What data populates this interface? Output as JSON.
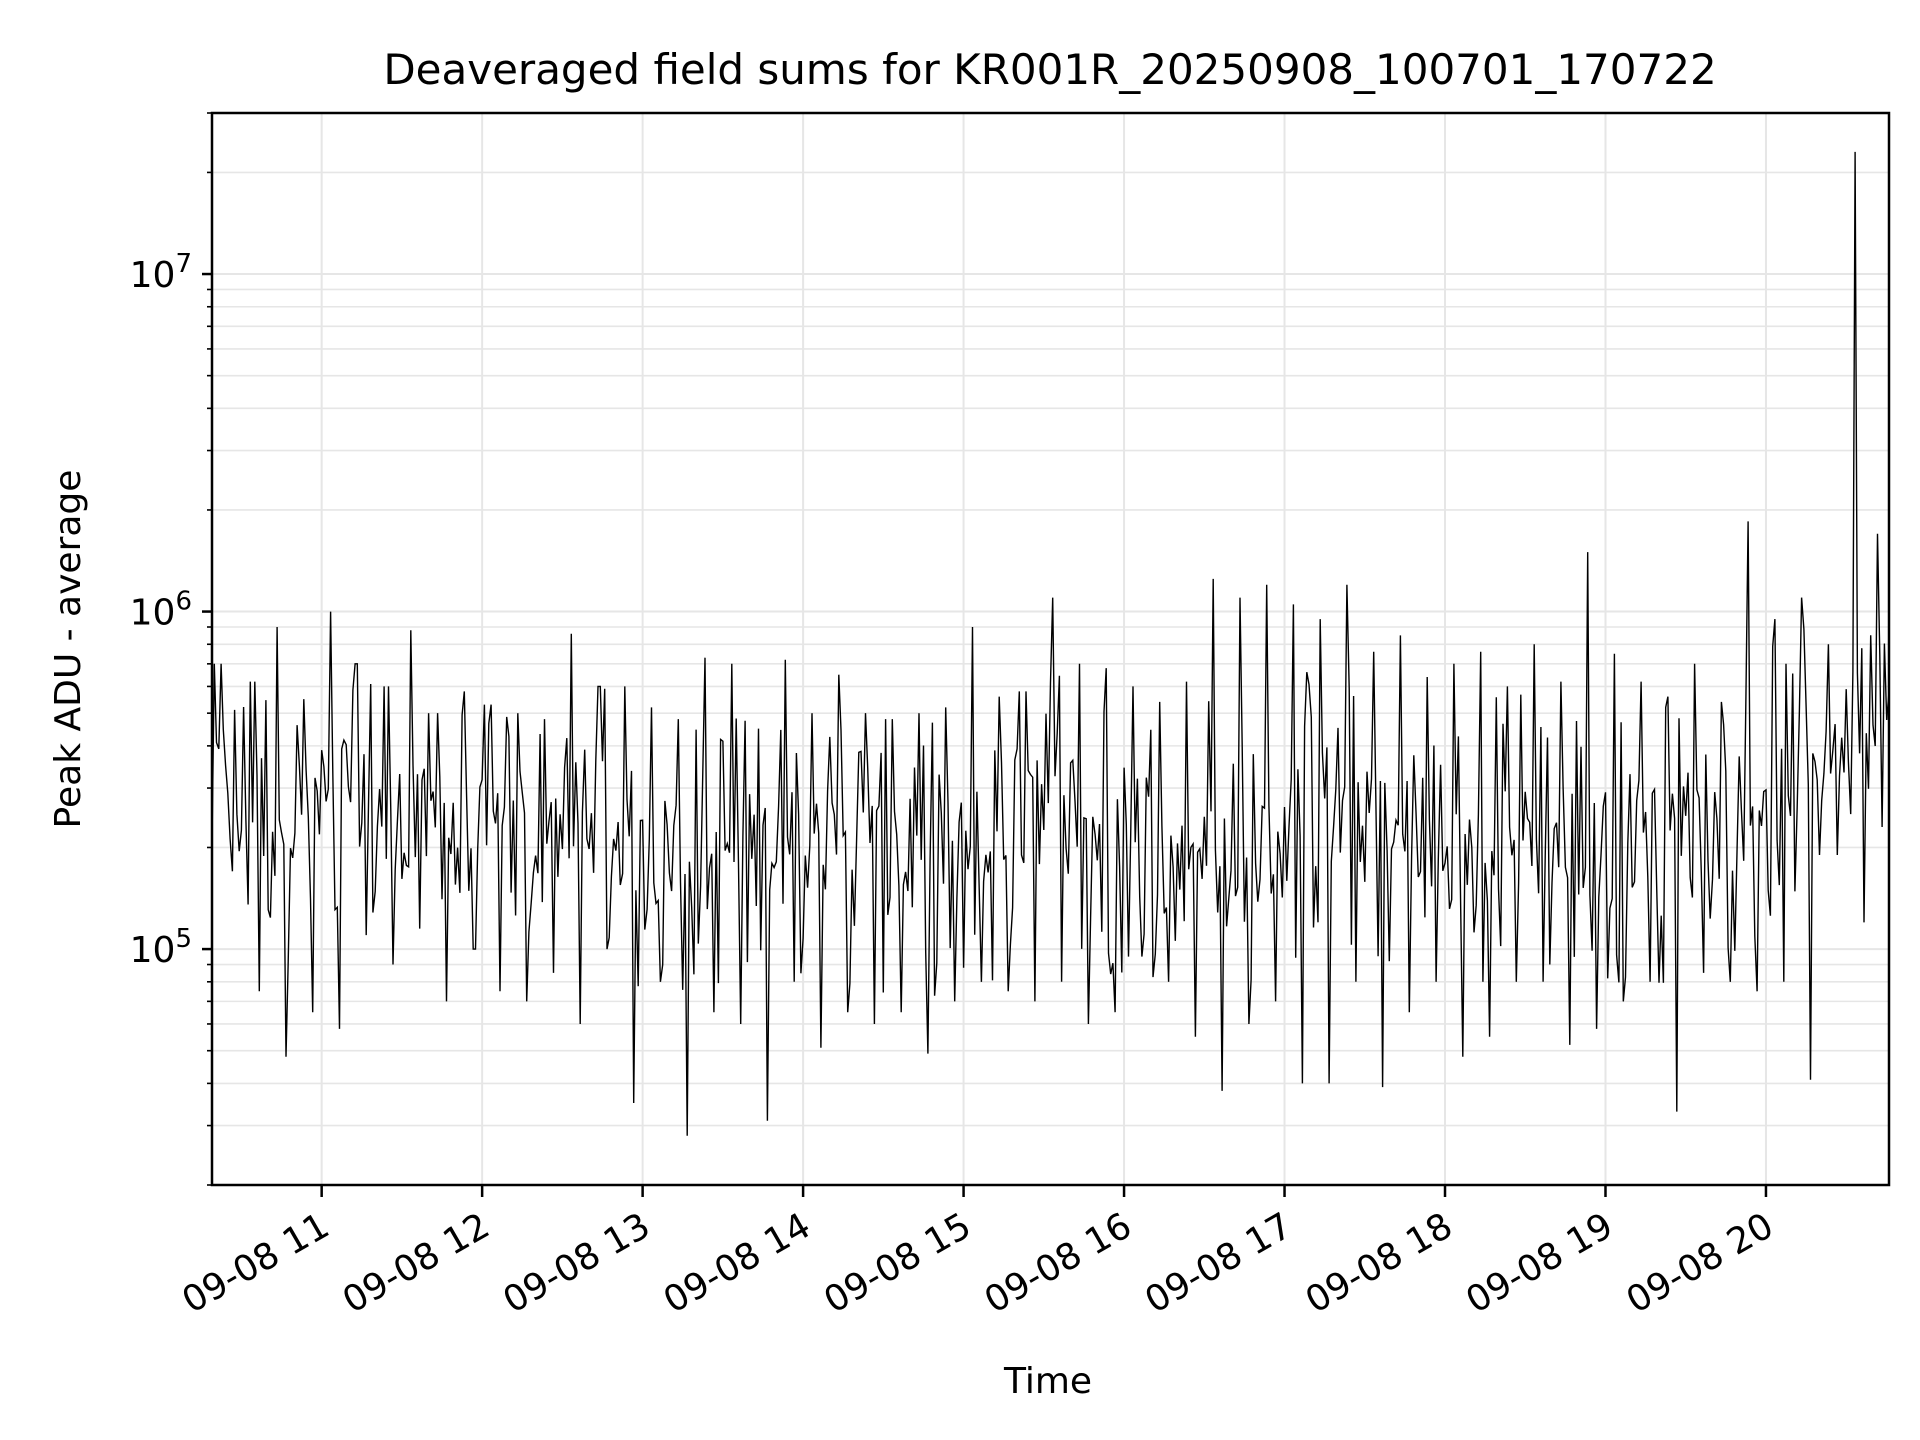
{
  "chart_data": {
    "type": "line",
    "title": "Deaveraged field sums for KR001R_20250908_100701_170722",
    "xlabel": "Time",
    "ylabel": "Peak ADU - average",
    "y_scale": "log",
    "xlim": [
      "2025-09-08 10:19",
      "2025-09-08 20:46"
    ],
    "ylim": [
      20000,
      30000000
    ],
    "x_tick_labels": [
      "09-08 11",
      "09-08 12",
      "09-08 13",
      "09-08 14",
      "09-08 15",
      "09-08 16",
      "09-08 17",
      "09-08 18",
      "09-08 19",
      "09-08 20"
    ],
    "y_tick_labels": [
      {
        "value": 100000,
        "base": "10",
        "exp": "5"
      },
      {
        "value": 1000000,
        "base": "10",
        "exp": "6"
      },
      {
        "value": 10000000,
        "base": "10",
        "exp": "7"
      }
    ],
    "grid": true,
    "line_color": "#000000",
    "series": [
      {
        "x": [
          "2025-09-08 10:19",
          "2025-09-08 10:30",
          "2025-09-08 10:40",
          "2025-09-08 10:50",
          "2025-09-08 11:00",
          "2025-09-08 11:10",
          "2025-09-08 11:20",
          "2025-09-08 11:30",
          "2025-09-08 11:40",
          "2025-09-08 11:50",
          "2025-09-08 12:00",
          "2025-09-08 12:10",
          "2025-09-08 12:20",
          "2025-09-08 12:30",
          "2025-09-08 12:40",
          "2025-09-08 12:50",
          "2025-09-08 13:00",
          "2025-09-08 13:10",
          "2025-09-08 13:20",
          "2025-09-08 13:30",
          "2025-09-08 13:40",
          "2025-09-08 13:50",
          "2025-09-08 14:00",
          "2025-09-08 14:10",
          "2025-09-08 14:20",
          "2025-09-08 14:30",
          "2025-09-08 14:40",
          "2025-09-08 14:50",
          "2025-09-08 15:00",
          "2025-09-08 15:10",
          "2025-09-08 15:20",
          "2025-09-08 15:30",
          "2025-09-08 15:40",
          "2025-09-08 15:50",
          "2025-09-08 16:00",
          "2025-09-08 16:10",
          "2025-09-08 16:20",
          "2025-09-08 16:30",
          "2025-09-08 16:40",
          "2025-09-08 16:50",
          "2025-09-08 17:00",
          "2025-09-08 17:10",
          "2025-09-08 17:20",
          "2025-09-08 17:30",
          "2025-09-08 17:40",
          "2025-09-08 17:50",
          "2025-09-08 18:00",
          "2025-09-08 18:10",
          "2025-09-08 18:20",
          "2025-09-08 18:30",
          "2025-09-08 18:40",
          "2025-09-08 18:50",
          "2025-09-08 19:00",
          "2025-09-08 19:10",
          "2025-09-08 19:20",
          "2025-09-08 19:30",
          "2025-09-08 19:40",
          "2025-09-08 19:50",
          "2025-09-08 20:00",
          "2025-09-08 20:10",
          "2025-09-08 20:20",
          "2025-09-08 20:30",
          "2025-09-08 20:40",
          "2025-09-08 20:46"
        ],
        "y": [
          300000,
          250000,
          280000,
          230000,
          270000,
          320000,
          260000,
          240000,
          230000,
          210000,
          220000,
          200000,
          190000,
          230000,
          260000,
          210000,
          180000,
          200000,
          190000,
          200000,
          190000,
          190000,
          210000,
          200000,
          200000,
          190000,
          180000,
          190000,
          170000,
          190000,
          230000,
          330000,
          280000,
          220000,
          200000,
          210000,
          170000,
          260000,
          200000,
          210000,
          220000,
          280000,
          250000,
          230000,
          220000,
          230000,
          200000,
          180000,
          230000,
          240000,
          200000,
          220000,
          180000,
          230000,
          210000,
          200000,
          230000,
          260000,
          300000,
          330000,
          380000,
          450000,
          600000,
          580000
        ],
        "y_low": [
          170000,
          75000,
          48000,
          65000,
          58000,
          110000,
          90000,
          115000,
          70000,
          100000,
          75000,
          70000,
          85000,
          60000,
          100000,
          35000,
          80000,
          28000,
          65000,
          60000,
          31000,
          80000,
          51000,
          65000,
          60000,
          65000,
          49000,
          70000,
          80000,
          75000,
          70000,
          80000,
          60000,
          65000,
          95000,
          80000,
          55000,
          38000,
          60000,
          70000,
          40000,
          40000,
          80000,
          39000,
          65000,
          80000,
          48000,
          55000,
          80000,
          80000,
          52000,
          58000,
          70000,
          80000,
          33000,
          85000,
          80000,
          75000,
          80000,
          41000,
          190000,
          120000,
          230000,
          330000
        ],
        "y_high": [
          700000,
          620000,
          900000,
          550000,
          1000000,
          700000,
          600000,
          880000,
          500000,
          580000,
          530000,
          500000,
          480000,
          860000,
          600000,
          600000,
          520000,
          480000,
          730000,
          700000,
          450000,
          720000,
          500000,
          650000,
          500000,
          480000,
          500000,
          520000,
          900000,
          560000,
          580000,
          1100000,
          700000,
          680000,
          600000,
          540000,
          620000,
          1250000,
          1100000,
          1200000,
          1050000,
          950000,
          1200000,
          760000,
          850000,
          640000,
          700000,
          760000,
          600000,
          800000,
          620000,
          1500000,
          750000,
          620000,
          560000,
          700000,
          540000,
          1850000,
          950000,
          1100000,
          800000,
          23000000,
          1700000,
          900000
        ]
      }
    ]
  }
}
